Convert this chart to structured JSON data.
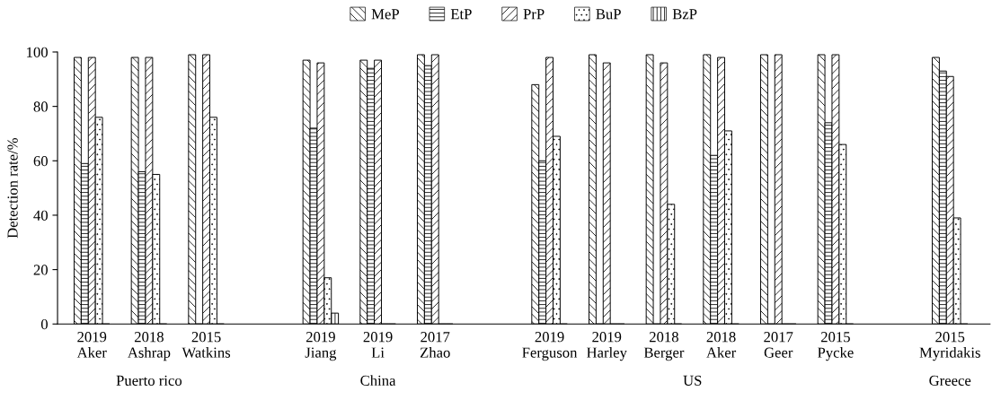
{
  "chart_data": {
    "type": "bar",
    "categories": [
      "2019\nAker",
      "2018\nAshrap",
      "2015\nWatkins",
      null,
      "2019\nJiang",
      "2019\nLi",
      "2017\nZhao",
      null,
      "2019\nFerguson",
      "2019\nHarley",
      "2018\nBerger",
      "2018\nAker",
      "2017\nGeer",
      "2015\nPycke",
      null,
      "2015\nMyridakis"
    ],
    "ylabel": "Detection rate/%",
    "ylim": [
      0,
      100
    ],
    "yticks": [
      0,
      20,
      40,
      60,
      80,
      100
    ],
    "legend": "top",
    "grid": false,
    "annotations": [
      "Puerto rico",
      "China",
      "US",
      "Greece"
    ],
    "series": [
      {
        "name": "MeP",
        "color": "#000000",
        "values": [
          98,
          98,
          99,
          null,
          97,
          97,
          99,
          null,
          88,
          99,
          99,
          99,
          99,
          99,
          null,
          98
        ]
      },
      {
        "name": "EtP",
        "color": "#000000",
        "values": [
          59,
          56,
          0,
          null,
          72,
          94,
          95,
          null,
          60,
          0,
          0,
          62,
          0,
          74,
          null,
          93
        ]
      },
      {
        "name": "PrP",
        "color": "#000000",
        "values": [
          98,
          98,
          99,
          null,
          96,
          97,
          99,
          null,
          98,
          96,
          96,
          98,
          99,
          99,
          null,
          91
        ]
      },
      {
        "name": "BuP",
        "color": "#000000",
        "values": [
          76,
          55,
          76,
          null,
          17,
          0,
          0,
          null,
          69,
          0,
          44,
          71,
          0,
          66,
          null,
          39
        ]
      },
      {
        "name": "BzP",
        "color": "#000000",
        "values": [
          0,
          0,
          0,
          null,
          4,
          0,
          0,
          null,
          0,
          0,
          0,
          0,
          0,
          0,
          null,
          0
        ]
      }
    ]
  }
}
